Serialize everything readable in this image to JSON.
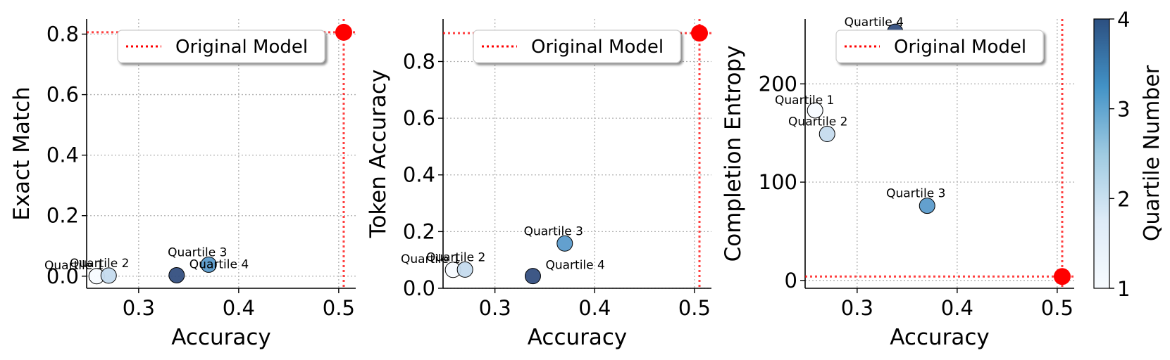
{
  "chart_data": [
    {
      "type": "scatter",
      "xlabel": "Accuracy",
      "ylabel": "Exact Match",
      "xlim": [
        0.248,
        0.517
      ],
      "ylim": [
        -0.04,
        0.85
      ],
      "xticks": [
        0.3,
        0.4,
        0.5
      ],
      "yticks": [
        0.0,
        0.2,
        0.4,
        0.6,
        0.8
      ],
      "xtick_labels": [
        "0.3",
        "0.4",
        "0.5"
      ],
      "ytick_labels": [
        "0.0",
        "0.2",
        "0.4",
        "0.6",
        "0.8"
      ],
      "grid": true,
      "points": [
        {
          "label": "Quartile 1",
          "quartile": 1,
          "x": 0.258,
          "y": 0.0
        },
        {
          "label": "Quartile 2",
          "quartile": 2,
          "x": 0.27,
          "y": 0.002
        },
        {
          "label": "Quartile 3",
          "quartile": 3,
          "x": 0.37,
          "y": 0.038
        },
        {
          "label": "Quartile 4",
          "quartile": 4,
          "x": 0.338,
          "y": 0.003
        }
      ],
      "reference": {
        "name": "Original Model",
        "x": 0.505,
        "y": 0.806
      },
      "legend": {
        "entries": [
          "Original Model"
        ],
        "position": "upper-center"
      }
    },
    {
      "type": "scatter",
      "xlabel": "Accuracy",
      "ylabel": "Token Accuracy",
      "xlim": [
        0.248,
        0.517
      ],
      "ylim": [
        0.0,
        0.95
      ],
      "xticks": [
        0.3,
        0.4,
        0.5
      ],
      "yticks": [
        0.0,
        0.2,
        0.4,
        0.6,
        0.8
      ],
      "xtick_labels": [
        "0.3",
        "0.4",
        "0.5"
      ],
      "ytick_labels": [
        "0.0",
        "0.2",
        "0.4",
        "0.6",
        "0.8"
      ],
      "grid": true,
      "points": [
        {
          "label": "Quartile 1",
          "quartile": 1,
          "x": 0.258,
          "y": 0.065
        },
        {
          "label": "Quartile 2",
          "quartile": 2,
          "x": 0.27,
          "y": 0.066
        },
        {
          "label": "Quartile 3",
          "quartile": 3,
          "x": 0.37,
          "y": 0.158
        },
        {
          "label": "Quartile 4",
          "quartile": 4,
          "x": 0.338,
          "y": 0.043
        }
      ],
      "reference": {
        "name": "Original Model",
        "x": 0.505,
        "y": 0.9
      },
      "legend": {
        "entries": [
          "Original Model"
        ],
        "position": "upper-center"
      }
    },
    {
      "type": "scatter",
      "xlabel": "Accuracy",
      "ylabel": "Completion Entropy",
      "xlim": [
        0.248,
        0.517
      ],
      "ylim": [
        -8,
        266
      ],
      "xticks": [
        0.3,
        0.4,
        0.5
      ],
      "yticks": [
        0,
        100,
        200
      ],
      "xtick_labels": [
        "0.3",
        "0.4",
        "0.5"
      ],
      "ytick_labels": [
        "0",
        "100",
        "200"
      ],
      "grid": true,
      "points": [
        {
          "label": "Quartile 1",
          "quartile": 1,
          "x": 0.258,
          "y": 173
        },
        {
          "label": "Quartile 2",
          "quartile": 2,
          "x": 0.27,
          "y": 149
        },
        {
          "label": "Quartile 3",
          "quartile": 3,
          "x": 0.37,
          "y": 76
        },
        {
          "label": "Quartile 4",
          "quartile": 4,
          "x": 0.338,
          "y": 253
        }
      ],
      "reference": {
        "name": "Original Model",
        "x": 0.505,
        "y": 4
      },
      "legend": {
        "entries": [
          "Original Model"
        ],
        "position": "upper-center"
      }
    }
  ],
  "colorbar": {
    "label": "Quartile Number",
    "min": 1,
    "max": 4,
    "ticks": [
      "1",
      "2",
      "3",
      "4"
    ],
    "colors": [
      "#f7fbff",
      "#c6dbef",
      "#6baed6",
      "#2171b5",
      "#08306b"
    ]
  },
  "quartile_colors": {
    "1": "#f7fbff",
    "2": "#c5dbee",
    "3": "#5b9bcb",
    "4": "#344f7f"
  },
  "reference_color": "#ff0000"
}
